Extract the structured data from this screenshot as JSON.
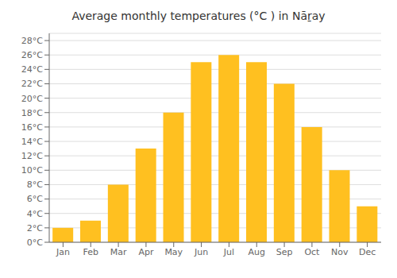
{
  "chart_data": {
    "type": "bar",
    "title": "Average monthly temperatures (°C ) in Nāṟay",
    "categories": [
      "Jan",
      "Feb",
      "Mar",
      "Apr",
      "May",
      "Jun",
      "Jul",
      "Aug",
      "Sep",
      "Oct",
      "Nov",
      "Dec"
    ],
    "values": [
      2,
      3,
      8,
      13,
      18,
      25,
      26,
      25,
      22,
      16,
      10,
      5
    ],
    "color": "#FFC020",
    "ylim": [
      0,
      29
    ],
    "yticks": [
      {
        "value": 0,
        "label": "0°C"
      },
      {
        "value": 2,
        "label": "2°C"
      },
      {
        "value": 4,
        "label": "4°C"
      },
      {
        "value": 6,
        "label": "6°C"
      },
      {
        "value": 8,
        "label": "8°C"
      },
      {
        "value": 10,
        "label": "10°C"
      },
      {
        "value": 12,
        "label": "12°C"
      },
      {
        "value": 14,
        "label": "14°C"
      },
      {
        "value": 16,
        "label": "16°C"
      },
      {
        "value": 18,
        "label": "18°C"
      },
      {
        "value": 20,
        "label": "20°C"
      },
      {
        "value": 22,
        "label": "22°C"
      },
      {
        "value": 24,
        "label": "24°C"
      },
      {
        "value": 26,
        "label": "26°C"
      },
      {
        "value": 28,
        "label": "28°C"
      }
    ],
    "grid": true
  }
}
